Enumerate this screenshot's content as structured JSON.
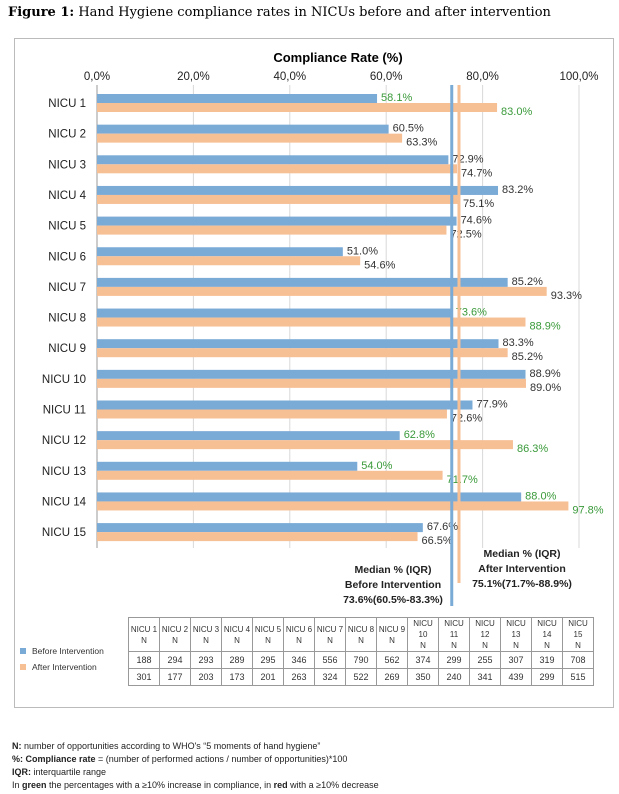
{
  "figure_label": "Figure 1:",
  "figure_title": " Hand Hygiene compliance rates in NICUs before and after intervention",
  "chart_data": {
    "type": "bar",
    "orientation": "horizontal",
    "title": "Compliance Rate (%)",
    "xlim": [
      0,
      100
    ],
    "x_ticks": [
      "0,0%",
      "20,0%",
      "40,0%",
      "60,0%",
      "80,0%",
      "100,0%"
    ],
    "categories": [
      "NICU 1",
      "NICU 2",
      "NICU 3",
      "NICU 4",
      "NICU 5",
      "NICU 6",
      "NICU 7",
      "NICU 8",
      "NICU 9",
      "NICU 10",
      "NICU 11",
      "NICU 12",
      "NICU 13",
      "NICU 14",
      "NICU 15"
    ],
    "series": [
      {
        "name": "Before Intervention",
        "color": "#7aaad6",
        "values": [
          58.1,
          60.5,
          72.9,
          83.2,
          74.6,
          51.0,
          85.2,
          73.6,
          83.3,
          88.9,
          77.9,
          62.8,
          54.0,
          88.0,
          67.6
        ],
        "labels": [
          "58.1%",
          "60.5%",
          "72.9%",
          "83.2%",
          "74.6%",
          "51.0%",
          "85.2%",
          "73.6%",
          "83.3%",
          "88.9%",
          "77.9%",
          "62.8%",
          "54.0%",
          "88.0%",
          "67.6%"
        ]
      },
      {
        "name": "After Intervention",
        "color": "#f7bf94",
        "values": [
          83.0,
          63.3,
          74.7,
          75.1,
          72.5,
          54.6,
          93.3,
          88.9,
          85.2,
          89.0,
          72.6,
          86.3,
          71.7,
          97.8,
          66.5
        ],
        "labels": [
          "83.0%",
          "63.3%",
          "74.7%",
          "75.1%",
          "72.5%",
          "54.6%",
          "93.3%",
          "88.9%",
          "85.2%",
          "89.0%",
          "72.6%",
          "86.3%",
          "71.7%",
          "97.8%",
          "66.5%"
        ]
      }
    ],
    "highlight_green": [
      0,
      7,
      11,
      12,
      13
    ],
    "green_color": "#3a9a3a",
    "medians": [
      {
        "value": 73.6,
        "color": "#7aaad6",
        "lines": [
          "Median % (IQR)",
          "Before Intervention",
          "73.6%(60.5%-83.3%)"
        ]
      },
      {
        "value": 75.1,
        "color": "#f7bf94",
        "lines": [
          "Median % (IQR)",
          "After Intervention",
          "75.1%(71.7%-88.9%)"
        ]
      }
    ],
    "grid": true,
    "legend": "bottom-left"
  },
  "table": {
    "headers": [
      "NICU 1",
      "NICU 2",
      "NICU 3",
      "NICU 4",
      "NICU 5",
      "NICU 6",
      "NICU 7",
      "NICU 8",
      "NICU 9",
      "NICU 10",
      "NICU 11",
      "NICU 12",
      "NICU 13",
      "NICU 14",
      "NICU 15"
    ],
    "sub": "N",
    "rows": [
      {
        "label": "Before Intervention",
        "values": [
          "188",
          "294",
          "293",
          "289",
          "295",
          "346",
          "556",
          "790",
          "562",
          "374",
          "299",
          "255",
          "307",
          "319",
          "708"
        ]
      },
      {
        "label": "After Intervention",
        "values": [
          "301",
          "177",
          "203",
          "173",
          "201",
          "263",
          "324",
          "522",
          "269",
          "350",
          "240",
          "341",
          "439",
          "299",
          "515"
        ]
      }
    ]
  },
  "notes": [
    {
      "b": "N:",
      "t": " number of opportunities according to WHO's “5 moments of hand hygiene”"
    },
    {
      "b": "%: Compliance rate",
      "t": " = (number of performed actions / number of opportunities)*100"
    },
    {
      "b": "IQR:",
      "t": " interquartile range"
    },
    {
      "b": "",
      "t": "In green the percentages with a ≥10% increase in compliance, in red with a ≥10% decrease"
    }
  ]
}
